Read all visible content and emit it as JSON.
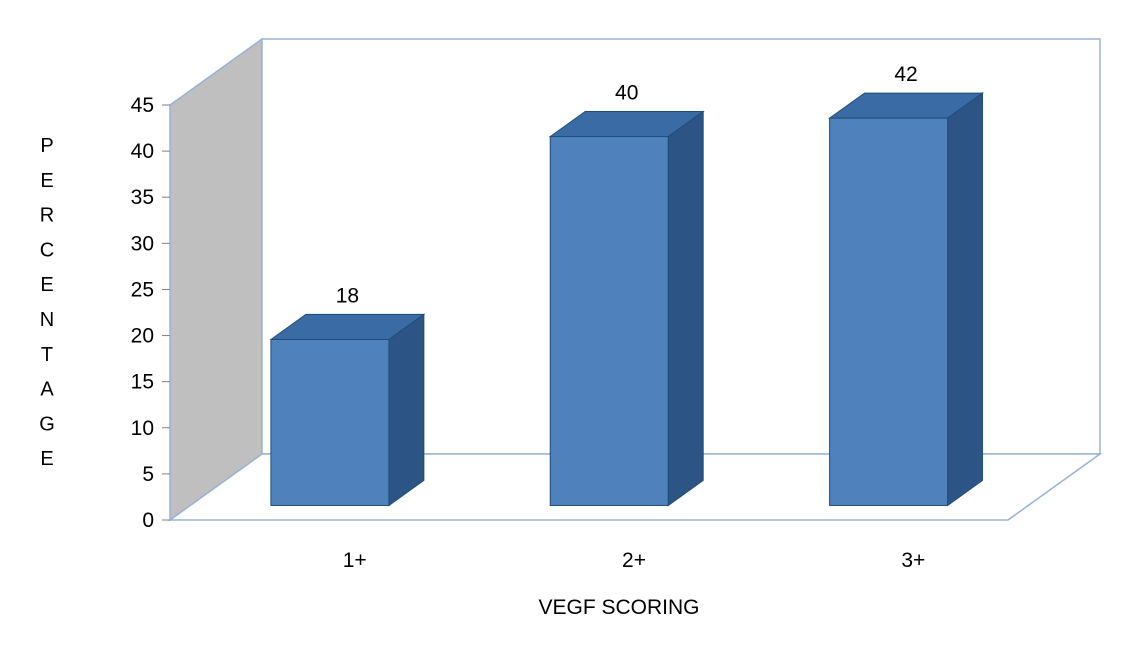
{
  "chart_data": {
    "type": "bar",
    "projection": "3d",
    "title": "",
    "xlabel": "VEGF SCORING",
    "ylabel": "PERCENTAGE",
    "categories": [
      "1+",
      "2+",
      "3+"
    ],
    "values": [
      18,
      40,
      42
    ],
    "ylim": [
      0,
      45
    ],
    "ytick_step": 5,
    "yticks": [
      0,
      5,
      10,
      15,
      20,
      25,
      30,
      35,
      40,
      45
    ],
    "grid": false,
    "legend": "none",
    "colors": {
      "bar_front": "#4F81BD",
      "bar_top": "#3A6BA5",
      "bar_side": "#2C5586",
      "bar_edge": "#1F4E79",
      "wall_left": "#BFBFBF",
      "wall_back": "#FFFFFF",
      "floor": "#FFFFFF",
      "border": "#95B3D7",
      "tick": "#808080",
      "text": "#000000"
    }
  }
}
